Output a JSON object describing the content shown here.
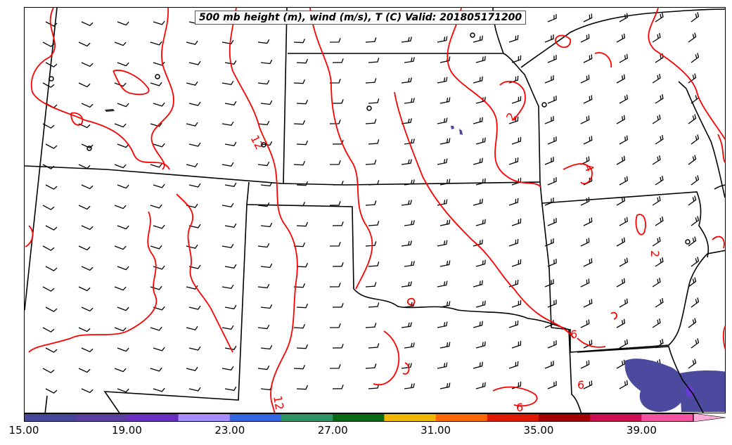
{
  "title": "500 mb height (m), wind (m/s), T (C) Valid: 201805171200",
  "colorbar": {
    "colors": [
      "#46479a",
      "#5b3e9e",
      "#6a2fc0",
      "#a98cff",
      "#3366e0",
      "#2e9466",
      "#0a6a16",
      "#f2b800",
      "#ff6a00",
      "#e01a00",
      "#a30000",
      "#cc0f55",
      "#f552a3",
      "#ffadd8"
    ],
    "tick_labels": [
      "15.00",
      "19.00",
      "23.00",
      "27.00",
      "31.00",
      "35.00",
      "39.00"
    ]
  },
  "contour_labels": [
    "12",
    "12",
    "2",
    "4",
    "2",
    "6",
    "6",
    "6"
  ],
  "colors": {
    "contour": "#ff0000",
    "boundary": "#000000",
    "shading": "#4b4a9e"
  }
}
